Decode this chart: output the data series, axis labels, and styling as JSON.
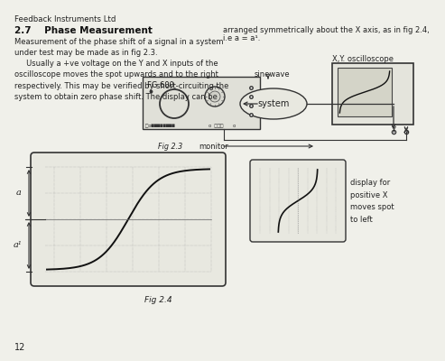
{
  "background_color": "#f0f0ea",
  "title_text": "Feedback Instruments Ltd",
  "section_title": "2.7    Phase Measurement",
  "body_text_left": "Measurement of the phase shift of a signal in a system\nunder test may be made as in fig 2.3.\n     Usually a +ve voltage on the Y and X inputs of the\noscilloscope moves the spot upwards and to the right\nrespectively. This may be verified by short-circuiting the\nsystem to obtain zero phase shift. The display can be",
  "body_text_right1": "arranged symmetrically about the X axis, as in fig 2.4,",
  "body_text_right2": "i.e a = a¹.",
  "fig23_label": "Fig 2.3",
  "fig24_label": "Fig 2.4",
  "monitor_label": "monitor",
  "sinewave_label": "sinewave",
  "system_label": "system",
  "xy_osc_label": "X,Y. oscilloscope",
  "display_text": "display for\npositive X\nmoves spot\nto left",
  "page_number": "12",
  "fg_label": "FG 600"
}
